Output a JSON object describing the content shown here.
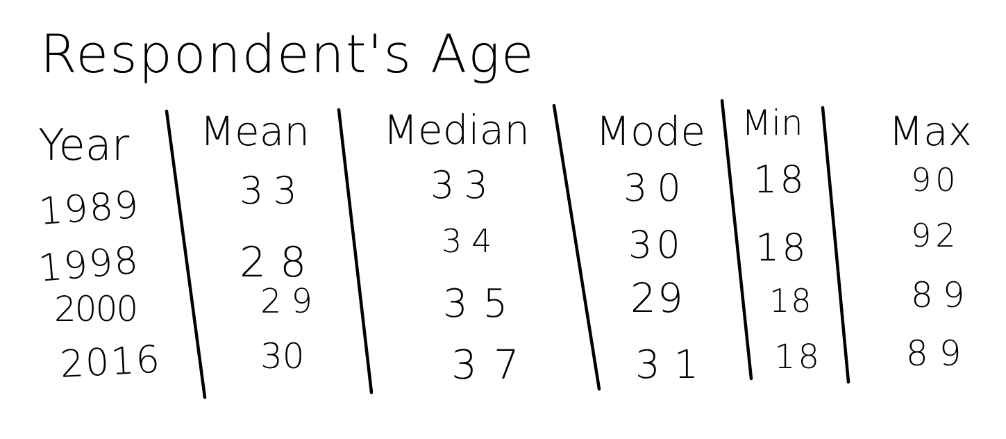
{
  "title": "Respondent's Age",
  "table": {
    "headers": {
      "year": "Year",
      "mean": "Mean",
      "median": "Median",
      "mode": "Mode",
      "min": "Min",
      "max": "Max"
    },
    "rows": [
      {
        "year": "1989",
        "mean": "33",
        "median": "33",
        "mode": "30",
        "min": "18",
        "max": "90"
      },
      {
        "year": "1998",
        "mean": "28",
        "median": "34",
        "mode": "30",
        "min": "18",
        "max": "92"
      },
      {
        "year": "2000",
        "mean": "29",
        "median": "35",
        "mode": "29",
        "min": "18",
        "max": "89"
      },
      {
        "year": "2016",
        "mean": "30",
        "median": "37",
        "mode": "31",
        "min": "18",
        "max": "89"
      }
    ]
  }
}
